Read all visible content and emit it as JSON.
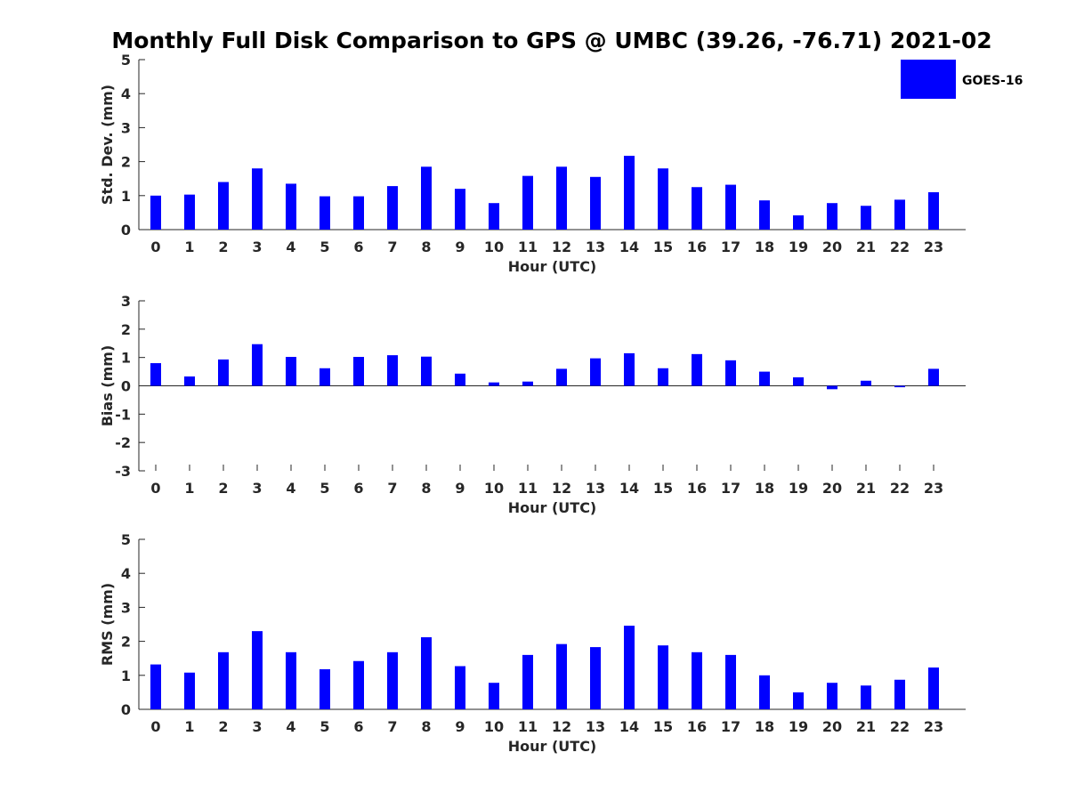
{
  "figure": {
    "title": "Monthly Full Disk Comparison to GPS @ UMBC (39.26, -76.71) 2021-02",
    "legend": {
      "label": "GOES-16",
      "color": "#0000ff",
      "placement": "top-right"
    }
  },
  "chart_data": [
    {
      "type": "bar",
      "name": "std-dev",
      "categories": [
        "0",
        "1",
        "2",
        "3",
        "4",
        "5",
        "6",
        "7",
        "8",
        "9",
        "10",
        "11",
        "12",
        "13",
        "14",
        "15",
        "16",
        "17",
        "18",
        "19",
        "20",
        "21",
        "22",
        "23"
      ],
      "series": [
        {
          "name": "GOES-16",
          "color": "#0000ff",
          "values": [
            1.0,
            1.03,
            1.4,
            1.8,
            1.35,
            0.98,
            0.98,
            1.28,
            1.85,
            1.2,
            0.78,
            1.58,
            1.85,
            1.55,
            2.17,
            1.8,
            1.25,
            1.32,
            0.86,
            0.42,
            0.78,
            0.7,
            0.88,
            1.1
          ]
        }
      ],
      "xlabel": "Hour (UTC)",
      "ylabel": "Std. Dev. (mm)",
      "ylim": [
        0,
        5
      ],
      "yticks": [
        "0",
        "1",
        "2",
        "3",
        "4",
        "5"
      ],
      "grid": false
    },
    {
      "type": "bar",
      "name": "bias",
      "categories": [
        "0",
        "1",
        "2",
        "3",
        "4",
        "5",
        "6",
        "7",
        "8",
        "9",
        "10",
        "11",
        "12",
        "13",
        "14",
        "15",
        "16",
        "17",
        "18",
        "19",
        "20",
        "21",
        "22",
        "23"
      ],
      "series": [
        {
          "name": "GOES-16",
          "color": "#0000ff",
          "values": [
            0.8,
            0.33,
            0.93,
            1.47,
            1.02,
            0.62,
            1.02,
            1.08,
            1.03,
            0.43,
            0.12,
            0.15,
            0.6,
            0.97,
            1.15,
            0.62,
            1.12,
            0.9,
            0.5,
            0.3,
            -0.12,
            0.18,
            -0.05,
            0.6
          ]
        }
      ],
      "xlabel": "Hour (UTC)",
      "ylabel": "Bias (mm)",
      "ylim": [
        -3,
        3
      ],
      "yticks": [
        "-3",
        "-2",
        "-1",
        "0",
        "1",
        "2",
        "3"
      ],
      "grid": false
    },
    {
      "type": "bar",
      "name": "rms",
      "categories": [
        "0",
        "1",
        "2",
        "3",
        "4",
        "5",
        "6",
        "7",
        "8",
        "9",
        "10",
        "11",
        "12",
        "13",
        "14",
        "15",
        "16",
        "17",
        "18",
        "19",
        "20",
        "21",
        "22",
        "23"
      ],
      "series": [
        {
          "name": "GOES-16",
          "color": "#0000ff",
          "values": [
            1.32,
            1.08,
            1.68,
            2.3,
            1.68,
            1.18,
            1.42,
            1.68,
            2.12,
            1.27,
            0.78,
            1.6,
            1.92,
            1.83,
            2.46,
            1.88,
            1.68,
            1.6,
            1.0,
            0.5,
            0.78,
            0.7,
            0.87,
            1.23
          ]
        }
      ],
      "xlabel": "Hour (UTC)",
      "ylabel": "RMS (mm)",
      "ylim": [
        0,
        5
      ],
      "yticks": [
        "0",
        "1",
        "2",
        "3",
        "4",
        "5"
      ],
      "grid": false
    }
  ]
}
